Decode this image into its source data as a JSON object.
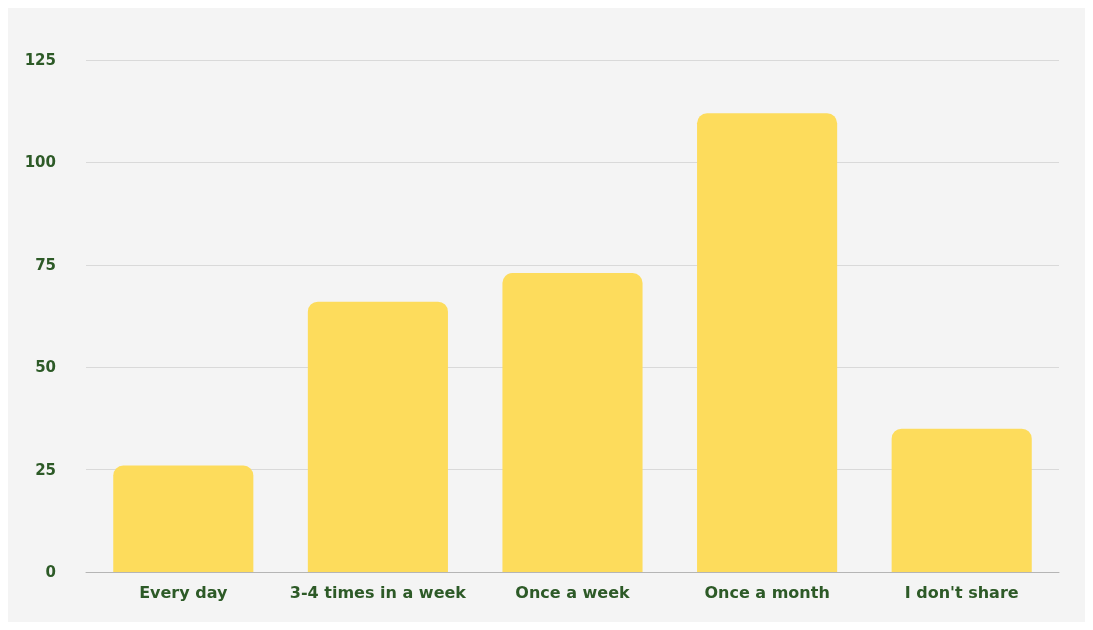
{
  "chart_data": {
    "type": "bar",
    "categories": [
      "Every day",
      "3-4 times in a week",
      "Once a week",
      "Once a month",
      "I don't share"
    ],
    "values": [
      26,
      66,
      73,
      112,
      35
    ],
    "color": "#fddc5c",
    "ylim": [
      0,
      125
    ],
    "yticks": [
      0,
      25,
      50,
      75,
      100,
      125
    ],
    "grid": "y"
  }
}
